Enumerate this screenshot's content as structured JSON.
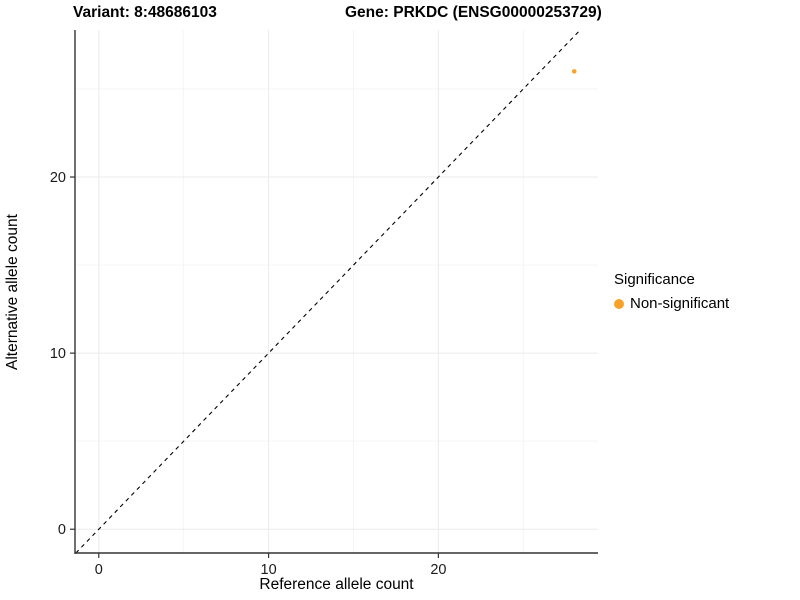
{
  "title": {
    "variant": "Variant: 8:48686103",
    "gene": "Gene: PRKDC (ENSG00000253729)"
  },
  "chart_data": {
    "type": "scatter",
    "title": "Variant: 8:48686103   Gene: PRKDC (ENSG00000253729)",
    "xlabel": "Reference allele count",
    "ylabel": "Alternative allele count",
    "xlim": [
      -1.4,
      29.4
    ],
    "ylim": [
      -1.35,
      28.35
    ],
    "xticks": [
      0,
      10,
      20
    ],
    "yticks": [
      0,
      10,
      20
    ],
    "xminor": [
      5,
      15,
      25
    ],
    "yminor": [
      5,
      15,
      25
    ],
    "grid": {
      "major_color": "#ebebeb",
      "minor_color": "#f5f5f5",
      "on": true
    },
    "axis_color": "#333333",
    "tick_label_color": "#1a1a1a",
    "reference_line": {
      "slope": 1,
      "intercept": 0,
      "style": "dashed",
      "color": "#000000"
    },
    "series": [
      {
        "name": "Non-significant",
        "color": "#F9A22A",
        "points": [
          {
            "x": 28,
            "y": 26
          }
        ],
        "point_radius": 2.3
      }
    ],
    "legend": {
      "title": "Significance",
      "position": "right",
      "items": [
        {
          "label": "Non-significant",
          "color": "#F9A22A"
        }
      ]
    }
  }
}
